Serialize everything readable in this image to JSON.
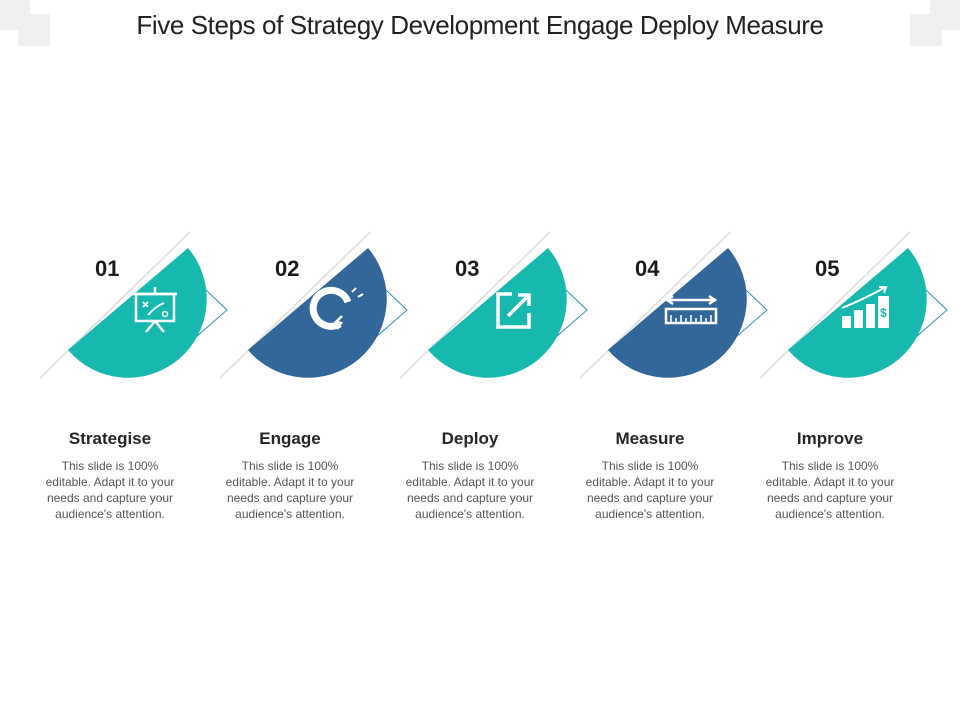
{
  "title": "Five Steps of Strategy Development Engage Deploy Measure",
  "colors": {
    "teal": "#17b8ae",
    "navy": "#336699",
    "arrow_outline": "#2a8fb8"
  },
  "steps": [
    {
      "number": "01",
      "label": "Strategise",
      "icon": "presentation-board-icon",
      "color": "teal",
      "description": "This slide is 100% editable. Adapt it to your needs and capture your audience's attention."
    },
    {
      "number": "02",
      "label": "Engage",
      "icon": "magnet-icon",
      "color": "navy",
      "description": "This slide is 100% editable. Adapt it to your needs and capture your audience's attention."
    },
    {
      "number": "03",
      "label": "Deploy",
      "icon": "external-link-icon",
      "color": "teal",
      "description": "This slide is 100% editable. Adapt it to your needs and capture your audience's attention."
    },
    {
      "number": "04",
      "label": "Measure",
      "icon": "ruler-measure-icon",
      "color": "navy",
      "description": "This slide is 100% editable. Adapt it to your needs and capture your audience's attention."
    },
    {
      "number": "05",
      "label": "Improve",
      "icon": "growth-chart-icon",
      "color": "teal",
      "description": "This slide is 100% editable. Adapt it to your needs and capture your audience's attention."
    }
  ]
}
